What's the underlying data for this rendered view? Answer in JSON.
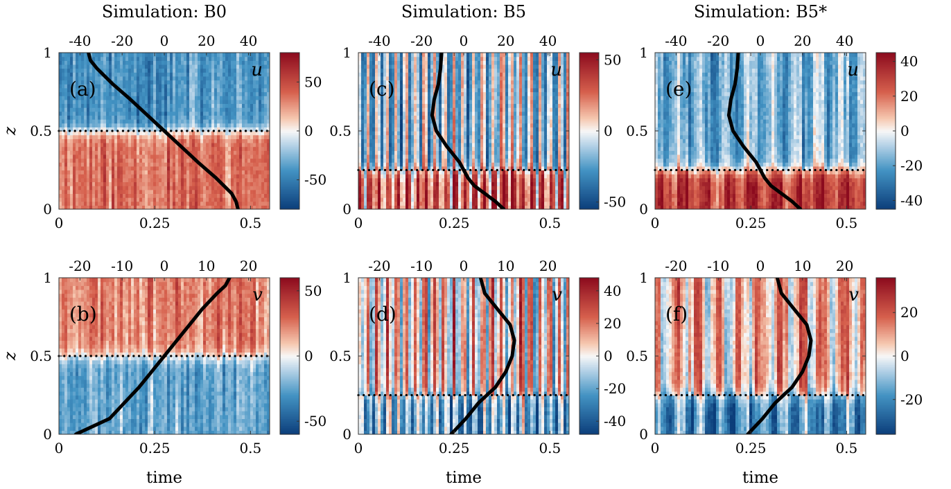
{
  "colormap": {
    "low": "#0b3d7a",
    "mid": "#f7f7f7",
    "high": "#8c0b1e"
  },
  "xlabel": "time",
  "ylabel": "z",
  "columns": [
    {
      "title": "Simulation: B0"
    },
    {
      "title": "Simulation: B5"
    },
    {
      "title": "Simulation: B5*"
    }
  ],
  "chart_data": [
    {
      "type": "heatmap",
      "panel": "(a)",
      "field": "u",
      "simulation": "B0",
      "row": 0,
      "col": 0,
      "xlim": [
        0,
        0.55
      ],
      "ylim": [
        0,
        1
      ],
      "xticks": [
        0,
        0.25,
        0.5
      ],
      "xtick_labels": [
        "0",
        "0.25",
        "0.5"
      ],
      "yticks": [
        0,
        0.5,
        1
      ],
      "ytick_labels": [
        "0",
        "0.5",
        "1"
      ],
      "profile_axis": {
        "lim": [
          -50,
          50
        ],
        "ticks": [
          -40,
          -20,
          0,
          20,
          40
        ],
        "tick_labels": [
          "-40",
          "-20",
          "0",
          "20",
          "40"
        ]
      },
      "colorbar": {
        "lim": [
          -80,
          80
        ],
        "ticks": [
          -50,
          0,
          50
        ],
        "tick_labels": [
          "-50",
          "0",
          "50"
        ]
      },
      "dotted_line_z": 0.5,
      "structure": "two-layer",
      "interface_z": 0.5,
      "lower_sign": 1,
      "lower_amp": 0.45,
      "upper_amp": 0.5,
      "stripes": 0,
      "stripe_amp": 0,
      "seed": 11,
      "profile": {
        "z": [
          0,
          0.05,
          0.1,
          0.2,
          0.3,
          0.4,
          0.5,
          0.6,
          0.7,
          0.8,
          0.9,
          0.95,
          1.0
        ],
        "value": [
          35,
          34,
          32,
          24.5,
          16,
          8,
          0,
          -8,
          -16,
          -24.5,
          -32,
          -35,
          -36
        ]
      }
    },
    {
      "type": "heatmap",
      "panel": "(b)",
      "field": "v",
      "simulation": "B0",
      "row": 1,
      "col": 0,
      "xlim": [
        0,
        0.55
      ],
      "ylim": [
        0,
        1
      ],
      "xticks": [
        0,
        0.25,
        0.5
      ],
      "xtick_labels": [
        "0",
        "0.25",
        "0.5"
      ],
      "yticks": [
        0,
        0.5,
        1
      ],
      "ytick_labels": [
        "0",
        "0.5",
        "1"
      ],
      "profile_axis": {
        "lim": [
          -25,
          25
        ],
        "ticks": [
          -20,
          -10,
          0,
          10,
          20
        ],
        "tick_labels": [
          "-20",
          "-10",
          "0",
          "10",
          "20"
        ]
      },
      "colorbar": {
        "lim": [
          -60,
          60
        ],
        "ticks": [
          -50,
          0,
          50
        ],
        "tick_labels": [
          "-50",
          "0",
          "50"
        ]
      },
      "dotted_line_z": 0.5,
      "structure": "two-layer",
      "interface_z": 0.5,
      "lower_sign": -1,
      "lower_amp": 0.38,
      "upper_amp": 0.42,
      "stripes": 0,
      "stripe_amp": 0,
      "seed": 23,
      "profile": {
        "z": [
          0,
          0.05,
          0.1,
          0.2,
          0.3,
          0.4,
          0.5,
          0.6,
          0.7,
          0.8,
          0.9,
          0.95,
          1.0
        ],
        "value": [
          -21,
          -17,
          -13,
          -9.5,
          -6,
          -3,
          0,
          3,
          6,
          9,
          12.5,
          14.5,
          15.5
        ]
      }
    },
    {
      "type": "heatmap",
      "panel": "(c)",
      "field": "u",
      "simulation": "B5",
      "row": 0,
      "col": 1,
      "xlim": [
        0,
        0.55
      ],
      "ylim": [
        0,
        1
      ],
      "xticks": [
        0,
        0.25,
        0.5
      ],
      "xtick_labels": [
        "0",
        "0.25",
        "0.5"
      ],
      "yticks": [
        0,
        0.5,
        1
      ],
      "ytick_labels": [
        "0",
        "0.5",
        "1"
      ],
      "profile_axis": {
        "lim": [
          -50,
          50
        ],
        "ticks": [
          -40,
          -20,
          0,
          20,
          40
        ],
        "tick_labels": [
          "-40",
          "-20",
          "0",
          "20",
          "40"
        ]
      },
      "colorbar": {
        "lim": [
          -55,
          55
        ],
        "ticks": [
          -50,
          0,
          50
        ],
        "tick_labels": [
          "-50",
          "0",
          "50"
        ]
      },
      "dotted_line_z": 0.25,
      "structure": "two-layer",
      "interface_z": 0.25,
      "lower_sign": 1,
      "lower_amp": 0.55,
      "upper_amp": 0.18,
      "stripes": 22,
      "stripe_amp": 0.55,
      "seed": 37,
      "profile": {
        "z": [
          0,
          0.05,
          0.1,
          0.15,
          0.2,
          0.25,
          0.3,
          0.4,
          0.5,
          0.6,
          0.7,
          0.8,
          0.9,
          1.0
        ],
        "value": [
          19,
          15,
          10,
          5,
          2,
          0,
          -2,
          -8,
          -13,
          -15,
          -14,
          -12,
          -11,
          -10.5
        ]
      }
    },
    {
      "type": "heatmap",
      "panel": "(d)",
      "field": "v",
      "simulation": "B5",
      "row": 1,
      "col": 1,
      "xlim": [
        0,
        0.55
      ],
      "ylim": [
        0,
        1
      ],
      "xticks": [
        0,
        0.25,
        0.5
      ],
      "xtick_labels": [
        "0",
        "0.25",
        "0.5"
      ],
      "yticks": [
        0,
        0.5,
        1
      ],
      "ytick_labels": [
        "0",
        "0.5",
        "1"
      ],
      "profile_axis": {
        "lim": [
          -25,
          25
        ],
        "ticks": [
          -20,
          -10,
          0,
          10,
          20
        ],
        "tick_labels": [
          "-20",
          "-10",
          "0",
          "10",
          "20"
        ]
      },
      "colorbar": {
        "lim": [
          -48,
          48
        ],
        "ticks": [
          -40,
          -20,
          0,
          20,
          40
        ],
        "tick_labels": [
          "-40",
          "-20",
          "0",
          "20",
          "40"
        ]
      },
      "dotted_line_z": 0.25,
      "structure": "two-layer",
      "interface_z": 0.25,
      "lower_sign": -1,
      "lower_amp": 0.4,
      "upper_amp": 0.12,
      "stripes": 22,
      "stripe_amp": 0.55,
      "seed": 41,
      "profile": {
        "z": [
          0,
          0.1,
          0.2,
          0.25,
          0.3,
          0.4,
          0.5,
          0.6,
          0.7,
          0.8,
          0.9,
          1.0
        ],
        "value": [
          -3,
          0.5,
          3.5,
          5.5,
          7.5,
          10,
          11.5,
          12,
          11,
          8,
          5,
          4
        ]
      }
    },
    {
      "type": "heatmap",
      "panel": "(e)",
      "field": "u",
      "simulation": "B5*",
      "row": 0,
      "col": 2,
      "xlim": [
        0,
        0.55
      ],
      "ylim": [
        0,
        1
      ],
      "xticks": [
        0,
        0.25,
        0.5
      ],
      "xtick_labels": [
        "0",
        "0.25",
        "0.5"
      ],
      "yticks": [
        0,
        0.5,
        1
      ],
      "ytick_labels": [
        "0",
        "0.5",
        "1"
      ],
      "profile_axis": {
        "lim": [
          -50,
          50
        ],
        "ticks": [
          -40,
          -20,
          0,
          20,
          40
        ],
        "tick_labels": [
          "-40",
          "-20",
          "0",
          "20",
          "40"
        ]
      },
      "colorbar": {
        "lim": [
          -45,
          45
        ],
        "ticks": [
          -40,
          -20,
          0,
          20,
          40
        ],
        "tick_labels": [
          "-40",
          "-20",
          "0",
          "20",
          "40"
        ]
      },
      "dotted_line_z": 0.25,
      "structure": "two-layer",
      "interface_z": 0.25,
      "lower_sign": 1,
      "lower_amp": 0.72,
      "upper_amp": 0.32,
      "stripes": 9,
      "stripe_amp": 0.25,
      "seed": 53,
      "profile": {
        "z": [
          0,
          0.05,
          0.1,
          0.15,
          0.2,
          0.25,
          0.3,
          0.4,
          0.5,
          0.6,
          0.7,
          0.8,
          0.9,
          1.0
        ],
        "value": [
          19,
          15,
          10,
          5,
          2,
          0,
          -2,
          -8,
          -13,
          -15,
          -14,
          -12,
          -11,
          -10.5
        ]
      }
    },
    {
      "type": "heatmap",
      "panel": "(f)",
      "field": "v",
      "simulation": "B5*",
      "row": 1,
      "col": 2,
      "xlim": [
        0,
        0.55
      ],
      "ylim": [
        0,
        1
      ],
      "xticks": [
        0,
        0.25,
        0.5
      ],
      "xtick_labels": [
        "0",
        "0.25",
        "0.5"
      ],
      "yticks": [
        0,
        0.5,
        1
      ],
      "ytick_labels": [
        "0",
        "0.5",
        "1"
      ],
      "profile_axis": {
        "lim": [
          -25,
          25
        ],
        "ticks": [
          -20,
          -10,
          0,
          10,
          20
        ],
        "tick_labels": [
          "-20",
          "-10",
          "0",
          "10",
          "20"
        ]
      },
      "colorbar": {
        "lim": [
          -36,
          36
        ],
        "ticks": [
          -20,
          0,
          20
        ],
        "tick_labels": [
          "-20",
          "0",
          "20"
        ]
      },
      "dotted_line_z": 0.25,
      "structure": "two-layer",
      "interface_z": 0.25,
      "lower_sign": -1,
      "lower_amp": 0.55,
      "upper_amp": 0.22,
      "stripes": 10,
      "stripe_amp": 0.35,
      "seed": 67,
      "profile": {
        "z": [
          0,
          0.1,
          0.2,
          0.25,
          0.3,
          0.4,
          0.5,
          0.6,
          0.7,
          0.8,
          0.9,
          1.0
        ],
        "value": [
          -3,
          0.5,
          3.5,
          5.5,
          7.5,
          10,
          11.5,
          12,
          11,
          8,
          5,
          4
        ]
      }
    }
  ]
}
